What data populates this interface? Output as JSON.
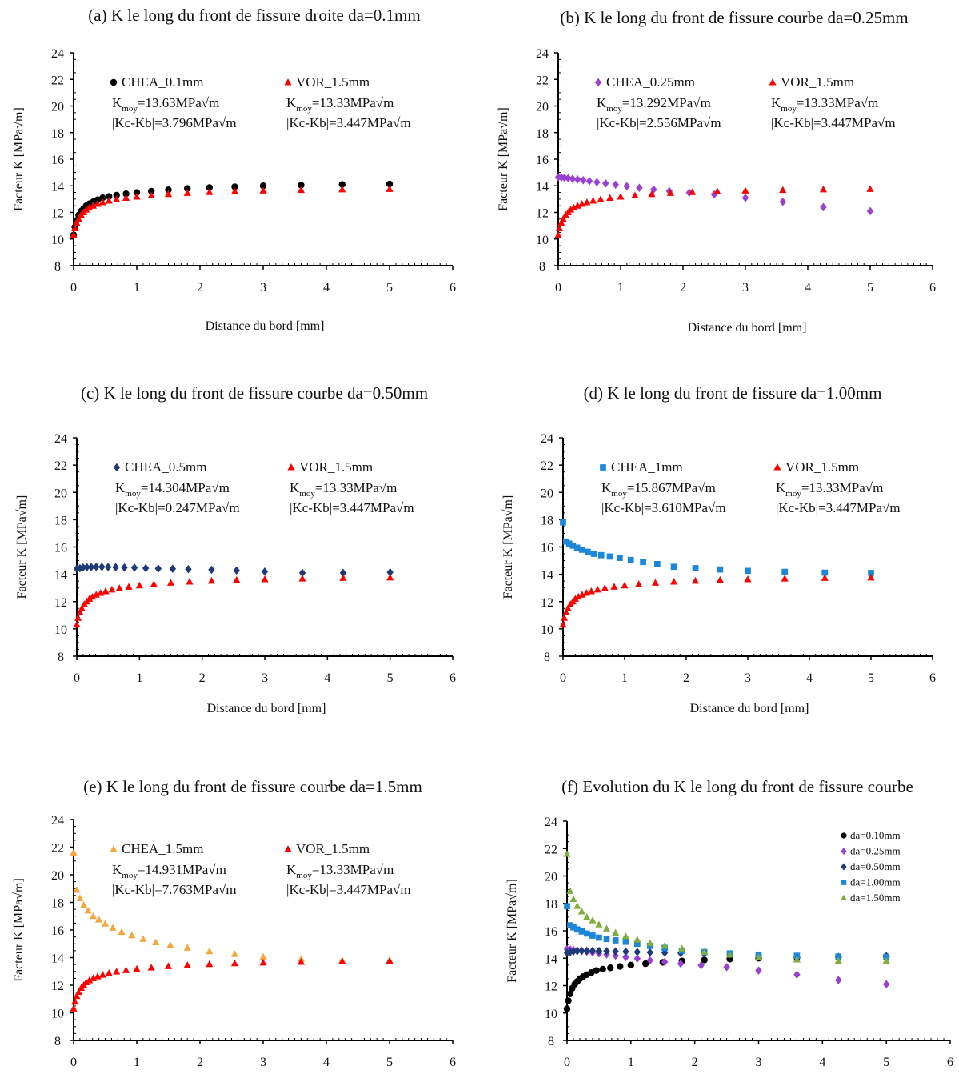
{
  "chart_data": [
    {
      "type": "scatter",
      "title": "(a) K le long du front de fissure droite da=0.1mm",
      "xlabel": "Distance du bord [mm]",
      "ylabel": "Facteur K [MPa√m]",
      "xlim": [
        0,
        6
      ],
      "ylim": [
        8,
        24
      ],
      "xticks": [
        "0",
        "1",
        "2",
        "3",
        "4",
        "5",
        "6"
      ],
      "yticks": [
        "8",
        "10",
        "12",
        "14",
        "16",
        "18",
        "20",
        "22",
        "24"
      ],
      "grid": false,
      "series": [
        {
          "name": "CHEA_0.1mm",
          "marker": "circle",
          "color": "#000000",
          "stats": [
            "=13.63MPa√m",
            "|Kc-Kb|=3.796MPa√m"
          ],
          "x": [
            0,
            0.02,
            0.05,
            0.08,
            0.12,
            0.16,
            0.2,
            0.25,
            0.31,
            0.38,
            0.46,
            0.56,
            0.68,
            0.83,
            1.0,
            1.23,
            1.5,
            1.8,
            2.15,
            2.55,
            3.0,
            3.6,
            4.25,
            5.0
          ],
          "y": [
            10.3,
            10.9,
            11.4,
            11.8,
            12.1,
            12.3,
            12.5,
            12.65,
            12.8,
            12.95,
            13.1,
            13.2,
            13.3,
            13.4,
            13.5,
            13.6,
            13.7,
            13.8,
            13.87,
            13.93,
            14.0,
            14.05,
            14.1,
            14.13
          ]
        },
        {
          "name": "VOR_1.5mm",
          "marker": "triangle",
          "color": "#ff0000",
          "stats": [
            "=13.33MPa√m",
            "|Kc-Kb|=3.447MPa√m"
          ],
          "x": [
            0,
            0.02,
            0.05,
            0.08,
            0.12,
            0.16,
            0.2,
            0.25,
            0.31,
            0.38,
            0.46,
            0.56,
            0.68,
            0.83,
            1.0,
            1.23,
            1.5,
            1.8,
            2.15,
            2.55,
            3.0,
            3.6,
            4.25,
            5.0
          ],
          "y": [
            10.3,
            10.8,
            11.2,
            11.5,
            11.8,
            12.0,
            12.2,
            12.35,
            12.5,
            12.63,
            12.75,
            12.87,
            12.98,
            13.08,
            13.17,
            13.27,
            13.37,
            13.45,
            13.52,
            13.58,
            13.63,
            13.68,
            13.72,
            13.75
          ]
        }
      ]
    },
    {
      "type": "scatter",
      "title": "(b) K le long du front de fissure  courbe da=0.25mm",
      "xlabel": "Distance du bord [mm]",
      "ylabel": "Facteur K [MPa√m]",
      "xlim": [
        0,
        6
      ],
      "ylim": [
        8,
        24
      ],
      "xticks": [
        "0",
        "1",
        "2",
        "3",
        "4",
        "5",
        "6"
      ],
      "yticks": [
        "8",
        "10",
        "12",
        "14",
        "16",
        "18",
        "20",
        "22",
        "24"
      ],
      "grid": false,
      "series": [
        {
          "name": "CHEA_0.25mm",
          "marker": "diamond",
          "color": "#9b3fd6",
          "stats": [
            "=13.292MPa√m",
            "|Kc-Kb|=2.556MPa√m"
          ],
          "x": [
            0,
            0.05,
            0.1,
            0.16,
            0.23,
            0.31,
            0.4,
            0.5,
            0.62,
            0.76,
            0.92,
            1.1,
            1.3,
            1.53,
            1.78,
            2.1,
            2.5,
            3.0,
            3.6,
            4.25,
            5.0
          ],
          "y": [
            14.65,
            14.63,
            14.6,
            14.57,
            14.53,
            14.48,
            14.42,
            14.35,
            14.27,
            14.18,
            14.08,
            13.97,
            13.85,
            13.72,
            13.6,
            13.48,
            13.35,
            13.1,
            12.8,
            12.4,
            12.1
          ]
        },
        {
          "name": "VOR_1.5mm",
          "marker": "triangle",
          "color": "#ff0000",
          "stats": [
            "=13.33MPa√m",
            "|Kc-Kb|=3.447MPa√m"
          ],
          "x": [
            0,
            0.02,
            0.05,
            0.08,
            0.12,
            0.16,
            0.2,
            0.25,
            0.31,
            0.38,
            0.46,
            0.56,
            0.68,
            0.83,
            1.0,
            1.23,
            1.5,
            1.8,
            2.15,
            2.55,
            3.0,
            3.6,
            4.25,
            5.0
          ],
          "y": [
            10.3,
            10.8,
            11.2,
            11.5,
            11.8,
            12.0,
            12.2,
            12.35,
            12.5,
            12.63,
            12.75,
            12.87,
            12.98,
            13.08,
            13.17,
            13.27,
            13.37,
            13.45,
            13.52,
            13.58,
            13.63,
            13.68,
            13.72,
            13.75
          ]
        }
      ]
    },
    {
      "type": "scatter",
      "title": "(c) K le long du front de fissure courbe da=0.50mm",
      "xlabel": "Distance du bord [mm]",
      "ylabel": "Facteur K [MPa√m]",
      "xlim": [
        0,
        6
      ],
      "ylim": [
        8,
        24
      ],
      "xticks": [
        "0",
        "1",
        "2",
        "3",
        "4",
        "5",
        "6"
      ],
      "yticks": [
        "8",
        "10",
        "12",
        "14",
        "16",
        "18",
        "20",
        "22",
        "24"
      ],
      "grid": false,
      "series": [
        {
          "name": "CHEA_0.5mm",
          "marker": "diamond",
          "color": "#1f3a78",
          "stats": [
            "=14.304MPa√m",
            "|Kc-Kb|=0.247MPa√m"
          ],
          "x": [
            0,
            0.05,
            0.1,
            0.16,
            0.23,
            0.31,
            0.4,
            0.5,
            0.62,
            0.76,
            0.92,
            1.1,
            1.3,
            1.53,
            1.78,
            2.15,
            2.55,
            3.0,
            3.6,
            4.25,
            5.0
          ],
          "y": [
            14.4,
            14.45,
            14.5,
            14.52,
            14.53,
            14.54,
            14.54,
            14.53,
            14.52,
            14.5,
            14.48,
            14.45,
            14.42,
            14.4,
            14.37,
            14.33,
            14.28,
            14.2,
            14.1,
            14.1,
            14.15
          ]
        },
        {
          "name": "VOR_1.5mm",
          "marker": "triangle",
          "color": "#ff0000",
          "stats": [
            "=13.33MPa√m",
            "|Kc-Kb|=3.447MPa√m"
          ],
          "x": [
            0,
            0.02,
            0.05,
            0.08,
            0.12,
            0.16,
            0.2,
            0.25,
            0.31,
            0.38,
            0.46,
            0.56,
            0.68,
            0.83,
            1.0,
            1.23,
            1.5,
            1.8,
            2.15,
            2.55,
            3.0,
            3.6,
            4.25,
            5.0
          ],
          "y": [
            10.3,
            10.8,
            11.2,
            11.5,
            11.8,
            12.0,
            12.2,
            12.35,
            12.5,
            12.63,
            12.75,
            12.87,
            12.98,
            13.08,
            13.17,
            13.27,
            13.37,
            13.45,
            13.52,
            13.58,
            13.63,
            13.68,
            13.72,
            13.75
          ]
        }
      ]
    },
    {
      "type": "scatter",
      "title": "(d) K le long du front de fissure da=1.00mm",
      "xlabel": "Distance du bord [mm]",
      "ylabel": "Facteur K [MPa√m]",
      "xlim": [
        0,
        6
      ],
      "ylim": [
        8,
        24
      ],
      "xticks": [
        "0",
        "1",
        "2",
        "3",
        "4",
        "5",
        "6"
      ],
      "yticks": [
        "8",
        "10",
        "12",
        "14",
        "16",
        "18",
        "20",
        "22",
        "24"
      ],
      "grid": false,
      "series": [
        {
          "name": "CHEA_1mm",
          "marker": "square",
          "color": "#1c86d8",
          "stats": [
            "=15.867MPa√m",
            "|Kc-Kb|=3.610MPa√m"
          ],
          "x": [
            0,
            0.05,
            0.1,
            0.16,
            0.23,
            0.31,
            0.4,
            0.5,
            0.62,
            0.76,
            0.92,
            1.1,
            1.3,
            1.53,
            1.8,
            2.15,
            2.55,
            3.0,
            3.6,
            4.25,
            5.0
          ],
          "y": [
            17.8,
            16.4,
            16.25,
            16.1,
            15.95,
            15.8,
            15.65,
            15.5,
            15.4,
            15.3,
            15.2,
            15.05,
            14.9,
            14.75,
            14.55,
            14.45,
            14.35,
            14.25,
            14.18,
            14.12,
            14.1
          ]
        },
        {
          "name": "VOR_1.5mm",
          "marker": "triangle",
          "color": "#ff0000",
          "stats": [
            "=13.33MPa√m",
            "|Kc-Kb|=3.447MPa√m"
          ],
          "x": [
            0,
            0.02,
            0.05,
            0.08,
            0.12,
            0.16,
            0.2,
            0.25,
            0.31,
            0.38,
            0.46,
            0.56,
            0.68,
            0.83,
            1.0,
            1.23,
            1.5,
            1.8,
            2.15,
            2.55,
            3.0,
            3.6,
            4.25,
            5.0
          ],
          "y": [
            10.3,
            10.8,
            11.2,
            11.5,
            11.8,
            12.0,
            12.2,
            12.35,
            12.5,
            12.63,
            12.75,
            12.87,
            12.98,
            13.08,
            13.17,
            13.27,
            13.37,
            13.45,
            13.52,
            13.58,
            13.63,
            13.68,
            13.72,
            13.75
          ]
        }
      ]
    },
    {
      "type": "scatter",
      "title": "(e) K le long du front de fissure courbe da=1.5mm",
      "xlabel": "",
      "ylabel": "Facteur K [MPa√m]",
      "xlim": [
        0,
        6
      ],
      "ylim": [
        8,
        24
      ],
      "xticks": [
        "0",
        "1",
        "2",
        "3",
        "4",
        "5",
        "6"
      ],
      "yticks": [
        "8",
        "10",
        "12",
        "14",
        "16",
        "18",
        "20",
        "22",
        "24"
      ],
      "grid": false,
      "series": [
        {
          "name": "CHEA_1.5mm",
          "marker": "triangle",
          "color": "#f4a640",
          "stats": [
            "=14.931MPa√m",
            "|Kc-Kb|=7.763MPa√m"
          ],
          "x": [
            0,
            0.05,
            0.1,
            0.16,
            0.23,
            0.31,
            0.4,
            0.5,
            0.62,
            0.76,
            0.92,
            1.1,
            1.3,
            1.53,
            1.8,
            2.15,
            2.55,
            3.0,
            3.6,
            4.25,
            5.0
          ],
          "y": [
            21.6,
            18.9,
            18.3,
            17.8,
            17.4,
            17.0,
            16.75,
            16.45,
            16.15,
            15.85,
            15.6,
            15.35,
            15.1,
            14.9,
            14.7,
            14.45,
            14.25,
            14.05,
            13.9,
            13.8,
            13.8
          ]
        },
        {
          "name": "VOR_1.5mm",
          "marker": "triangle",
          "color": "#ff0000",
          "stats": [
            "=13.33MPa√m",
            "|Kc-Kb|=3.447MPa√m"
          ],
          "x": [
            0,
            0.02,
            0.05,
            0.08,
            0.12,
            0.16,
            0.2,
            0.25,
            0.31,
            0.38,
            0.46,
            0.56,
            0.68,
            0.83,
            1.0,
            1.23,
            1.5,
            1.8,
            2.15,
            2.55,
            3.0,
            3.6,
            4.25,
            5.0
          ],
          "y": [
            10.3,
            10.8,
            11.2,
            11.5,
            11.8,
            12.0,
            12.2,
            12.35,
            12.5,
            12.63,
            12.75,
            12.87,
            12.98,
            13.08,
            13.17,
            13.27,
            13.37,
            13.45,
            13.52,
            13.58,
            13.63,
            13.68,
            13.72,
            13.75
          ]
        }
      ]
    },
    {
      "type": "scatter",
      "title": "(f) Evolution du K le long du front de fissure courbe",
      "xlabel": "",
      "ylabel": "Facteur K [MPa√m]",
      "xlim": [
        0,
        6
      ],
      "ylim": [
        8,
        24
      ],
      "xticks": [
        "0",
        "1",
        "2",
        "3",
        "4",
        "5",
        "6"
      ],
      "yticks": [
        "8",
        "10",
        "12",
        "14",
        "16",
        "18",
        "20",
        "22",
        "24"
      ],
      "grid": false,
      "legend_style": "stacked",
      "series": [
        {
          "name": "da=0.10mm",
          "marker": "circle",
          "color": "#000000",
          "x": [
            0,
            0.02,
            0.05,
            0.08,
            0.12,
            0.16,
            0.2,
            0.25,
            0.31,
            0.38,
            0.46,
            0.56,
            0.68,
            0.83,
            1.0,
            1.23,
            1.5,
            1.8,
            2.15,
            2.55,
            3.0,
            3.6,
            4.25,
            5.0
          ],
          "y": [
            10.3,
            10.9,
            11.4,
            11.8,
            12.1,
            12.3,
            12.5,
            12.65,
            12.8,
            12.95,
            13.1,
            13.2,
            13.3,
            13.4,
            13.5,
            13.6,
            13.7,
            13.8,
            13.87,
            13.93,
            14.0,
            14.05,
            14.1,
            14.13
          ]
        },
        {
          "name": "da=0.25mm",
          "marker": "diamond",
          "color": "#9b3fd6",
          "x": [
            0,
            0.05,
            0.1,
            0.16,
            0.23,
            0.31,
            0.4,
            0.5,
            0.62,
            0.76,
            0.92,
            1.1,
            1.3,
            1.53,
            1.78,
            2.1,
            2.5,
            3.0,
            3.6,
            4.25,
            5.0
          ],
          "y": [
            14.65,
            14.63,
            14.6,
            14.57,
            14.53,
            14.48,
            14.42,
            14.35,
            14.27,
            14.18,
            14.08,
            13.97,
            13.85,
            13.72,
            13.6,
            13.48,
            13.35,
            13.1,
            12.8,
            12.4,
            12.1
          ]
        },
        {
          "name": "da=0.50mm",
          "marker": "diamond",
          "color": "#1f3a78",
          "x": [
            0,
            0.05,
            0.1,
            0.16,
            0.23,
            0.31,
            0.4,
            0.5,
            0.62,
            0.76,
            0.92,
            1.1,
            1.3,
            1.53,
            1.78,
            2.15,
            2.55,
            3.0,
            3.6,
            4.25,
            5.0
          ],
          "y": [
            14.4,
            14.45,
            14.5,
            14.52,
            14.53,
            14.54,
            14.54,
            14.53,
            14.52,
            14.5,
            14.48,
            14.45,
            14.42,
            14.4,
            14.37,
            14.33,
            14.28,
            14.2,
            14.1,
            14.1,
            14.15
          ]
        },
        {
          "name": "da=1.00mm",
          "marker": "square",
          "color": "#1c86d8",
          "x": [
            0,
            0.05,
            0.1,
            0.16,
            0.23,
            0.31,
            0.4,
            0.5,
            0.62,
            0.76,
            0.92,
            1.1,
            1.3,
            1.53,
            1.8,
            2.15,
            2.55,
            3.0,
            3.6,
            4.25,
            5.0
          ],
          "y": [
            17.8,
            16.4,
            16.25,
            16.1,
            15.95,
            15.8,
            15.65,
            15.5,
            15.4,
            15.3,
            15.2,
            15.05,
            14.9,
            14.75,
            14.55,
            14.45,
            14.35,
            14.25,
            14.18,
            14.12,
            14.1
          ]
        },
        {
          "name": "da=1.50mm",
          "marker": "triangle",
          "color": "#7fae3e",
          "x": [
            0,
            0.05,
            0.1,
            0.16,
            0.23,
            0.31,
            0.4,
            0.5,
            0.62,
            0.76,
            0.92,
            1.1,
            1.3,
            1.53,
            1.8,
            2.15,
            2.55,
            3.0,
            3.6,
            4.25,
            5.0
          ],
          "y": [
            21.6,
            18.9,
            18.3,
            17.8,
            17.4,
            17.0,
            16.75,
            16.45,
            16.15,
            15.85,
            15.6,
            15.35,
            15.1,
            14.9,
            14.7,
            14.45,
            14.25,
            14.05,
            13.9,
            13.8,
            13.8
          ]
        }
      ]
    }
  ]
}
